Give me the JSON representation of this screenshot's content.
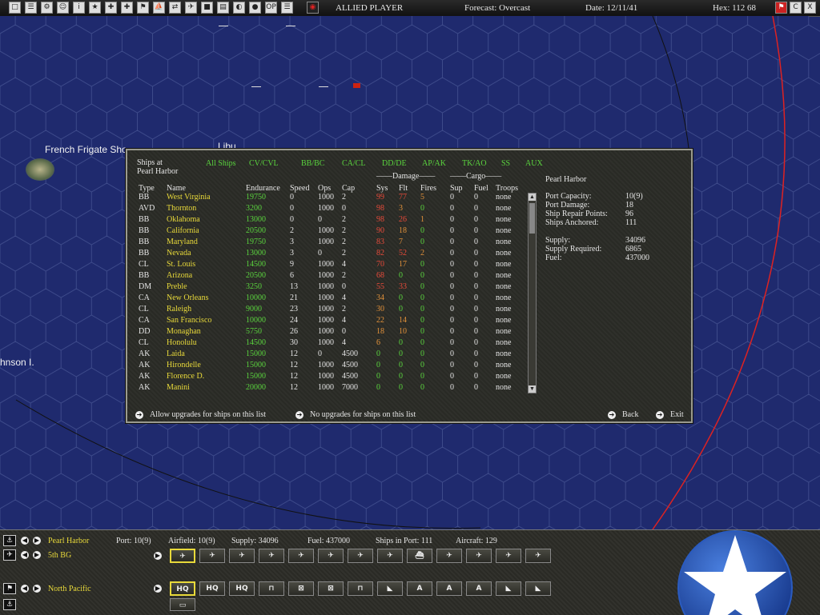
{
  "topbar": {
    "player": "ALLIED PLAYER",
    "forecast": "Forecast: Overcast",
    "date": "Date: 12/11/41",
    "hex": "Hex: 112 68",
    "right_buttons": [
      "C",
      "X"
    ]
  },
  "map": {
    "labels": [
      "French Frigate Sho",
      "Libu",
      "hnson I."
    ]
  },
  "dialog": {
    "title_line1": "Ships at",
    "title_line2": "Pearl Harbor",
    "tabs": [
      "All Ships",
      "CV/CVL",
      "BB/BC",
      "CA/CL",
      "DD/DE",
      "AP/AK",
      "TK/AO",
      "SS",
      "AUX"
    ],
    "group_damage": "Damage",
    "group_cargo": "Cargo",
    "headers": [
      "Type",
      "Name",
      "Endurance",
      "Speed",
      "Ops",
      "Cap",
      "Sys",
      "Flt",
      "Fires",
      "Sup",
      "Fuel",
      "Troops"
    ],
    "rows": [
      [
        "BB",
        "West Virginia",
        "19750",
        "0",
        "1000",
        "2",
        "99",
        "77",
        "5",
        "0",
        "0",
        "none"
      ],
      [
        "AVD",
        "Thornton",
        "3200",
        "0",
        "1000",
        "0",
        "98",
        "3",
        "0",
        "0",
        "0",
        "none"
      ],
      [
        "BB",
        "Oklahoma",
        "13000",
        "0",
        "0",
        "2",
        "98",
        "26",
        "1",
        "0",
        "0",
        "none"
      ],
      [
        "BB",
        "California",
        "20500",
        "2",
        "1000",
        "2",
        "90",
        "18",
        "0",
        "0",
        "0",
        "none"
      ],
      [
        "BB",
        "Maryland",
        "19750",
        "3",
        "1000",
        "2",
        "83",
        "7",
        "0",
        "0",
        "0",
        "none"
      ],
      [
        "BB",
        "Nevada",
        "13000",
        "3",
        "0",
        "2",
        "82",
        "52",
        "2",
        "0",
        "0",
        "none"
      ],
      [
        "CL",
        "St. Louis",
        "14500",
        "9",
        "1000",
        "4",
        "70",
        "17",
        "0",
        "0",
        "0",
        "none"
      ],
      [
        "BB",
        "Arizona",
        "20500",
        "6",
        "1000",
        "2",
        "68",
        "0",
        "0",
        "0",
        "0",
        "none"
      ],
      [
        "DM",
        "Preble",
        "3250",
        "13",
        "1000",
        "0",
        "55",
        "33",
        "0",
        "0",
        "0",
        "none"
      ],
      [
        "CA",
        "New Orleans",
        "10000",
        "21",
        "1000",
        "4",
        "34",
        "0",
        "0",
        "0",
        "0",
        "none"
      ],
      [
        "CL",
        "Raleigh",
        "9000",
        "23",
        "1000",
        "2",
        "30",
        "0",
        "0",
        "0",
        "0",
        "none"
      ],
      [
        "CA",
        "San Francisco",
        "10000",
        "24",
        "1000",
        "4",
        "22",
        "14",
        "0",
        "0",
        "0",
        "none"
      ],
      [
        "DD",
        "Monaghan",
        "5750",
        "26",
        "1000",
        "0",
        "18",
        "10",
        "0",
        "0",
        "0",
        "none"
      ],
      [
        "CL",
        "Honolulu",
        "14500",
        "30",
        "1000",
        "4",
        "6",
        "0",
        "0",
        "0",
        "0",
        "none"
      ],
      [
        "AK",
        "Laida",
        "15000",
        "12",
        "0",
        "4500",
        "0",
        "0",
        "0",
        "0",
        "0",
        "none"
      ],
      [
        "AK",
        "Hirondelle",
        "15000",
        "12",
        "1000",
        "4500",
        "0",
        "0",
        "0",
        "0",
        "0",
        "none"
      ],
      [
        "AK",
        "Florence D.",
        "15000",
        "12",
        "1000",
        "4500",
        "0",
        "0",
        "0",
        "0",
        "0",
        "none"
      ],
      [
        "AK",
        "Manini",
        "20000",
        "12",
        "1000",
        "7000",
        "0",
        "0",
        "0",
        "0",
        "0",
        "none"
      ]
    ],
    "info": {
      "title": "Pearl Harbor",
      "items": [
        {
          "label": "Port Capacity:",
          "value": "10(9)"
        },
        {
          "label": "Port Damage:",
          "value": "18"
        },
        {
          "label": "Ship Repair Points:",
          "value": "96"
        },
        {
          "label": "Ships Anchored:",
          "value": "111"
        },
        {
          "label": "Supply:",
          "value": "34096"
        },
        {
          "label": "Supply Required:",
          "value": "6865"
        },
        {
          "label": "Fuel:",
          "value": "437000"
        }
      ]
    },
    "footer": {
      "allow_upgrades": "Allow upgrades for ships on this list",
      "no_upgrades": "No upgrades for ships on this list",
      "back": "Back",
      "exit": "Exit"
    }
  },
  "bottom": {
    "base_name": "Pearl Harbor",
    "port": "Port: 10(9)",
    "airfield": "Airfield: 10(9)",
    "supply": "Supply: 34096",
    "fuel": "Fuel: 437000",
    "ships_in_port": "Ships in Port: 111",
    "aircraft": "Aircraft: 129",
    "air_unit": "5th BG",
    "command": "North Pacific",
    "air_icons": [
      "plane-icon",
      "plane-icon",
      "plane-icon",
      "plane-icon",
      "plane-icon",
      "plane-icon",
      "plane-icon",
      "plane-icon",
      "seaplane-icon",
      "plane-icon",
      "plane-icon",
      "plane-icon",
      "plane-icon"
    ],
    "ground_icons": [
      "HQ",
      "HQ",
      "HQ",
      "",
      "",
      "",
      "",
      "",
      "",
      "",
      "",
      "",
      "",
      ""
    ]
  },
  "colors": {
    "tab_green": "#5ad43e",
    "name_yellow": "#e8d93a",
    "dmg_red": "#e84a3a",
    "dmg_orange": "#e2913a",
    "ocean": "#1f2a6e"
  }
}
